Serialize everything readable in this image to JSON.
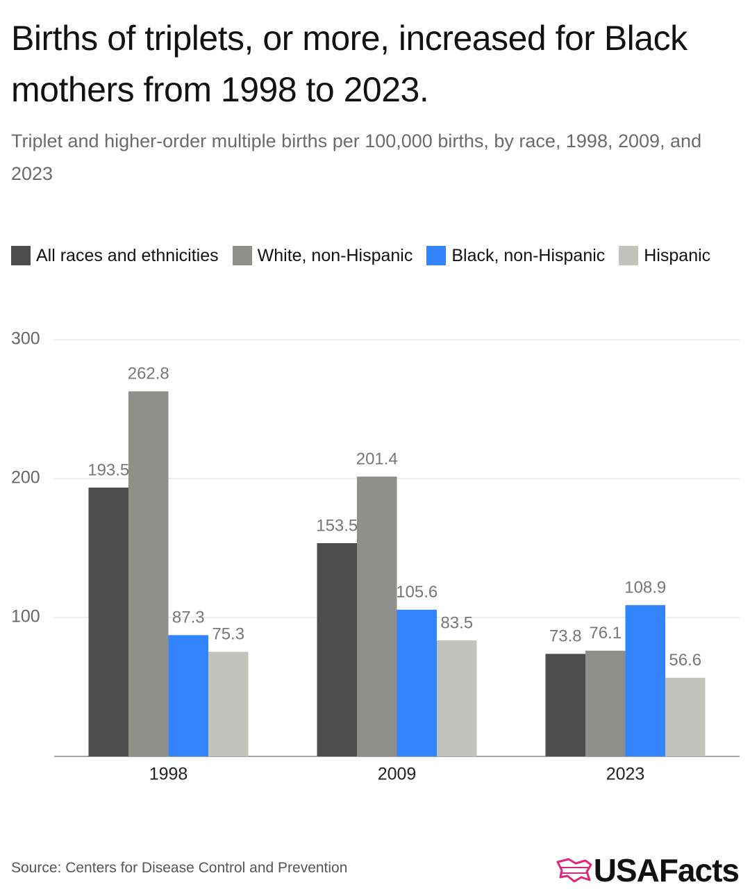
{
  "chart_data": {
    "type": "bar",
    "title": "Births of triplets, or more, increased for Black mothers from 1998 to 2023.",
    "subtitle": "Triplet and higher-order multiple births per 100,000 births, by race, 1998, 2009, and 2023",
    "categories": [
      "1998",
      "2009",
      "2023"
    ],
    "series": [
      {
        "name": "All races and ethnicities",
        "color": "#4d4d4d",
        "values": [
          193.5,
          153.5,
          73.8
        ]
      },
      {
        "name": "White, non-Hispanic",
        "color": "#8f8f8b",
        "values": [
          262.8,
          201.4,
          76.1
        ]
      },
      {
        "name": "Black, non-Hispanic",
        "color": "#3385ff",
        "values": [
          87.3,
          105.6,
          108.9
        ]
      },
      {
        "name": "Hispanic",
        "color": "#c3c3bd",
        "values": [
          75.3,
          83.5,
          56.6
        ]
      }
    ],
    "ylim": [
      0,
      300
    ],
    "yticks": [
      100,
      200,
      300
    ],
    "grid": true,
    "source": "Source: Centers for Disease Control and Prevention",
    "logo": "USAFacts"
  }
}
